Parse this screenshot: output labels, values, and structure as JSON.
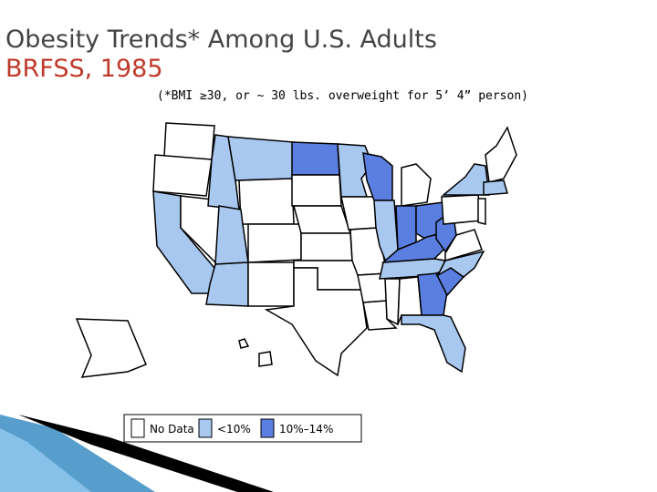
{
  "title": "Obesity Trends* Among U.S. Adults",
  "subtitle": "BRFSS, 1985",
  "note": "(*BMI ≥30, or ~ 30 lbs. overweight for 5’ 4” person)",
  "legend": [
    {
      "label": "No Data",
      "color": "#ffffff"
    },
    {
      "label": "<10%",
      "color": "#a9c8f0"
    },
    {
      "label": "10%–14%",
      "color": "#5b7fe0"
    }
  ]
}
